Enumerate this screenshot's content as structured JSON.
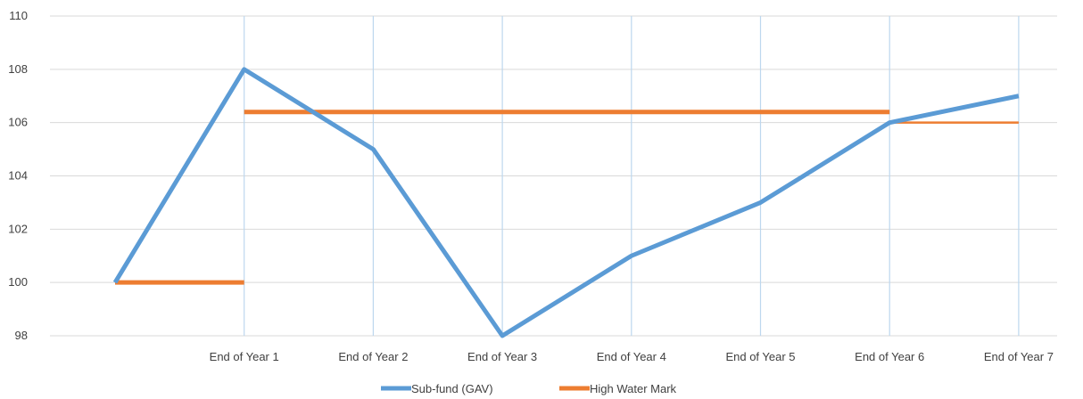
{
  "chart_data": {
    "type": "line",
    "categories": [
      "",
      "End of Year 1",
      "End of Year 2",
      "End of Year 3",
      "End of Year 4",
      "End of Year 5",
      "End of Year 6",
      "End of Year 7"
    ],
    "ylim": [
      98,
      110
    ],
    "yticks": [
      98,
      100,
      102,
      104,
      106,
      108,
      110
    ],
    "grid": true,
    "legend_position": "bottom",
    "series": [
      {
        "name": "Sub-fund (GAV)",
        "color": "#5b9bd5",
        "style": "line",
        "values": [
          100,
          108,
          105,
          98,
          101,
          103,
          106,
          107
        ]
      },
      {
        "name": "High Water Mark",
        "color": "#ed7d31",
        "style": "step",
        "segments": [
          {
            "from": 0,
            "to": 1,
            "value": 100,
            "thick": true
          },
          {
            "from": 1,
            "to": 6,
            "value": 106.4,
            "thick": true
          },
          {
            "from": 6,
            "to": 7,
            "value": 106,
            "thick": false
          }
        ]
      }
    ]
  }
}
